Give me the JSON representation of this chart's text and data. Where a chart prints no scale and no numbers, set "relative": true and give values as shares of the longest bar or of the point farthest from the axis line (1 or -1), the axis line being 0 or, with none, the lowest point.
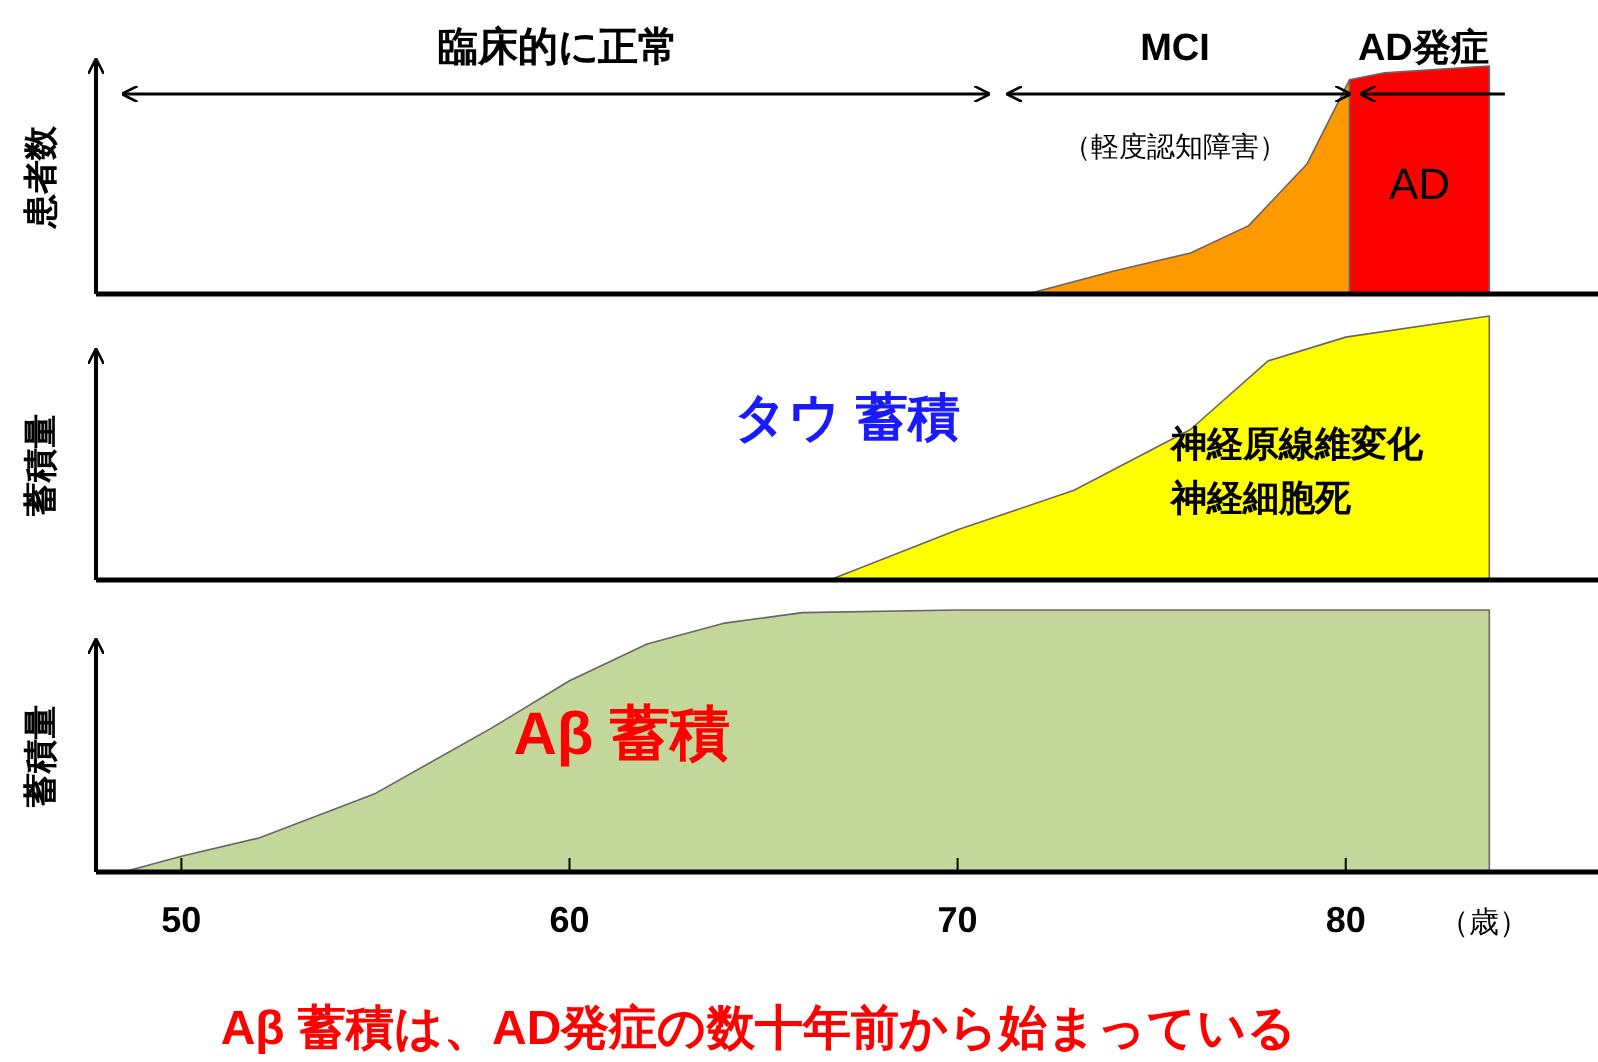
{
  "chart_data": [
    {
      "type": "area",
      "relative": true,
      "ylabel": "患者数",
      "xlim": [
        47.8,
        86.5
      ],
      "tick_labels": false,
      "annotations": [
        "臨床的に正常",
        "MCI",
        "（軽度認知障害）",
        "AD発症"
      ],
      "series": [
        {
          "color": "#ff9900",
          "x": [
            71.8,
            74,
            76,
            77.5,
            79,
            80.1
          ],
          "values": [
            0,
            0.1,
            0.18,
            0.3,
            0.57,
            0.94
          ]
        },
        {
          "name": "AD",
          "color": "#ff0000",
          "x": [
            80.1,
            81,
            83.7
          ],
          "values": [
            0.94,
            0.97,
            1
          ]
        }
      ]
    },
    {
      "type": "area",
      "relative": true,
      "ylabel": "蓄積量",
      "xlim": [
        47.8,
        86.5
      ],
      "tick_labels": false,
      "annotations": [
        "神経原線維変化",
        "神経細胞死"
      ],
      "series": [
        {
          "name": "タウ 蓄積",
          "color": "#ffff00",
          "x": [
            66.7,
            70,
            73,
            76,
            78,
            80,
            83.7
          ],
          "values": [
            0,
            0.19,
            0.34,
            0.57,
            0.83,
            0.92,
            1
          ]
        }
      ]
    },
    {
      "type": "area",
      "relative": true,
      "ylabel": "蓄積量",
      "xlabel": "（歳）",
      "xlim": [
        47.8,
        86.5
      ],
      "xticks": [
        50,
        60,
        70,
        80
      ],
      "tick_labels": "x",
      "annotations": [
        "Aβ 蓄積は、AD発症の数十年前から始まっている"
      ],
      "series": [
        {
          "name": "Aβ 蓄積",
          "color": "#c4d79b",
          "x": [
            48.5,
            50,
            52,
            55,
            58,
            60,
            62,
            64,
            66,
            70,
            83.7
          ],
          "values": [
            0,
            0.06,
            0.13,
            0.3,
            0.55,
            0.73,
            0.87,
            0.95,
            0.99,
            1,
            1
          ]
        }
      ]
    }
  ]
}
